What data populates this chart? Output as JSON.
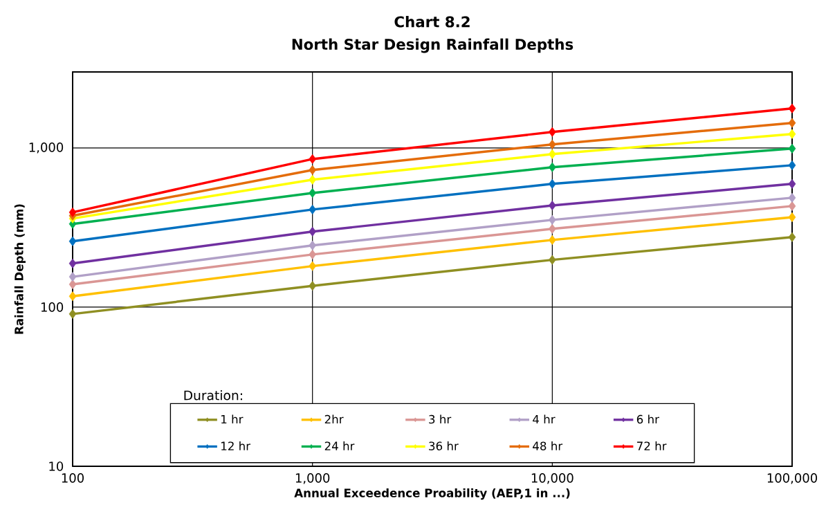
{
  "chart_data": {
    "type": "line",
    "title": "Chart 8.2",
    "subtitle": "North Star Design Rainfall Depths",
    "xlabel": "Annual Exceedence Proability (AEP,1 in ...)",
    "ylabel": "Rainfall Depth (mm)",
    "legend_title": "Duration:",
    "x": [
      100,
      1000,
      10000,
      100000
    ],
    "series": [
      {
        "name": "1 hr",
        "color": "#8f8f22",
        "values": [
          90.5,
          136,
          198,
          275
        ]
      },
      {
        "name": "2hr",
        "color": "#ffc000",
        "values": [
          117,
          181,
          264,
          367
        ]
      },
      {
        "name": "3 hr",
        "color": "#da9694",
        "values": [
          139,
          214,
          310,
          431
        ]
      },
      {
        "name": "4 hr",
        "color": "#b1a0c7",
        "values": [
          155,
          244,
          353,
          486
        ]
      },
      {
        "name": "6 hr",
        "color": "#7030a0",
        "values": [
          188,
          298,
          435,
          594
        ]
      },
      {
        "name": "12 hr",
        "color": "#0070c0",
        "values": [
          259,
          410,
          594,
          778
        ]
      },
      {
        "name": "24 hr",
        "color": "#00b050",
        "values": [
          333,
          521,
          756,
          990
        ]
      },
      {
        "name": "36 hr",
        "color": "#ffff00",
        "values": [
          360,
          631,
          914,
          1222
        ]
      },
      {
        "name": "48 hr",
        "color": "#e46c0a",
        "values": [
          375,
          726,
          1051,
          1435
        ]
      },
      {
        "name": "72 hr",
        "color": "#ff0000",
        "values": [
          394,
          851,
          1259,
          1770
        ]
      }
    ],
    "log": "xy",
    "xlim": [
      100,
      100000
    ],
    "ylim": [
      10,
      3000
    ],
    "xticks": [
      100,
      {
        "value": 1000,
        "label": "1,000"
      },
      {
        "value": 10000,
        "label": "10,000"
      },
      {
        "value": 100000,
        "label": "100,000"
      }
    ],
    "yticks": [
      10,
      100,
      {
        "value": 1000,
        "label": "1,000"
      }
    ],
    "grid": true,
    "legend": "bottom",
    "marker": "diamond",
    "line_style": "solid"
  }
}
